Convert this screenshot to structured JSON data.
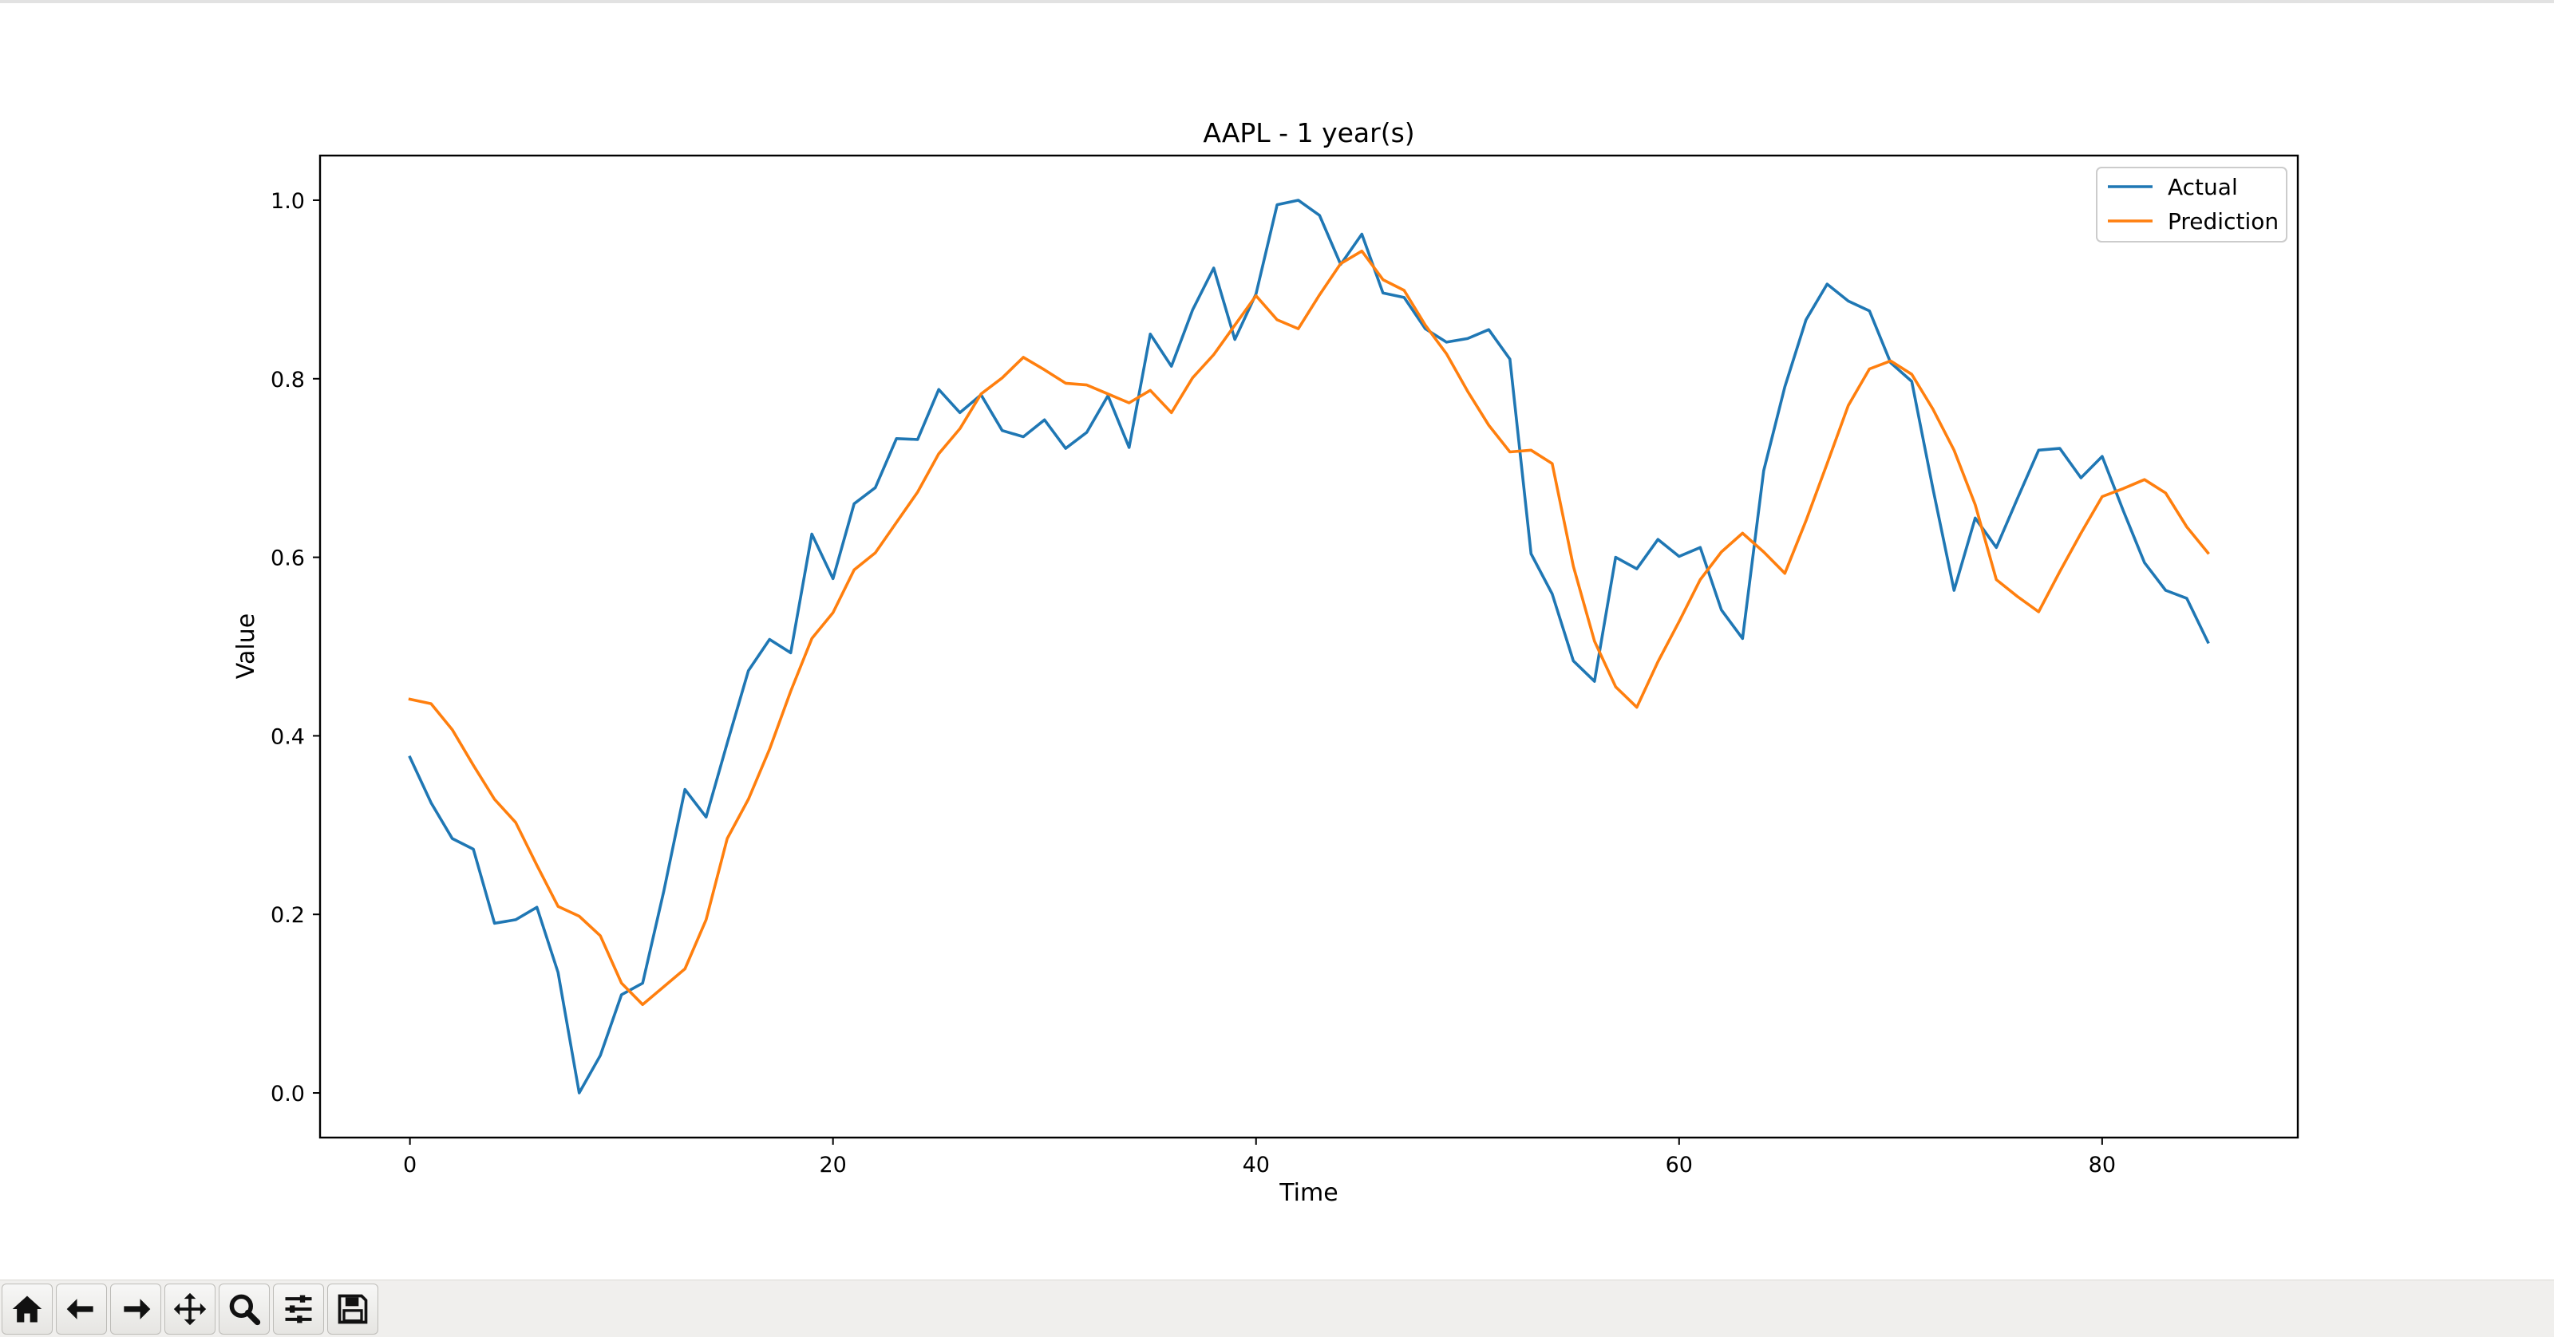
{
  "window": {
    "status_message": ""
  },
  "toolbar": {
    "buttons": [
      {
        "name": "home-button",
        "icon": "home-icon",
        "tooltip": "Home"
      },
      {
        "name": "back-button",
        "icon": "arrow-left-icon",
        "tooltip": "Back"
      },
      {
        "name": "forward-button",
        "icon": "arrow-right-icon",
        "tooltip": "Forward"
      },
      {
        "name": "pan-button",
        "icon": "move-icon",
        "tooltip": "Pan"
      },
      {
        "name": "zoom-button",
        "icon": "magnifier-icon",
        "tooltip": "Zoom"
      },
      {
        "name": "configure-subplots-button",
        "icon": "sliders-icon",
        "tooltip": "Subplots"
      },
      {
        "name": "save-button",
        "icon": "floppy-disk-icon",
        "tooltip": "Save"
      }
    ]
  },
  "chart_data": {
    "type": "line",
    "title": "AAPL - 1 year(s)",
    "xlabel": "Time",
    "ylabel": "Value",
    "xlim": [
      -4.25,
      89.25
    ],
    "ylim": [
      -0.05,
      1.05
    ],
    "xticks": [
      0,
      20,
      40,
      60,
      80
    ],
    "xtick_labels": [
      "0",
      "20",
      "40",
      "60",
      "80"
    ],
    "yticks": [
      0.0,
      0.2,
      0.4,
      0.6,
      0.8,
      1.0
    ],
    "ytick_labels": [
      "0.0",
      "0.2",
      "0.4",
      "0.6",
      "0.8",
      "1.0"
    ],
    "grid": false,
    "legend_position": "top-right",
    "x": [
      0,
      1,
      2,
      3,
      4,
      5,
      6,
      7,
      8,
      9,
      10,
      11,
      12,
      13,
      14,
      15,
      16,
      17,
      18,
      19,
      20,
      21,
      22,
      23,
      24,
      25,
      26,
      27,
      28,
      29,
      30,
      31,
      32,
      33,
      34,
      35,
      36,
      37,
      38,
      39,
      40,
      41,
      42,
      43,
      44,
      45,
      46,
      47,
      48,
      49,
      50,
      51,
      52,
      53,
      54,
      55,
      56,
      57,
      58,
      59,
      60,
      61,
      62,
      63,
      64,
      65,
      66,
      67,
      68,
      69,
      70,
      71,
      72,
      73,
      74,
      75,
      76,
      77,
      78,
      79,
      80,
      81,
      82,
      83,
      84,
      85
    ],
    "series": [
      {
        "name": "Actual",
        "color": "#1f77b4",
        "values": [
          0.376,
          0.325,
          0.285,
          0.273,
          0.19,
          0.194,
          0.208,
          0.135,
          0.0,
          0.042,
          0.11,
          0.123,
          0.226,
          0.34,
          0.309,
          0.392,
          0.473,
          0.508,
          0.493,
          0.626,
          0.576,
          0.66,
          0.678,
          0.733,
          0.732,
          0.788,
          0.762,
          0.782,
          0.742,
          0.735,
          0.754,
          0.722,
          0.74,
          0.781,
          0.723,
          0.85,
          0.814,
          0.877,
          0.924,
          0.844,
          0.895,
          0.995,
          1.0,
          0.983,
          0.928,
          0.962,
          0.896,
          0.891,
          0.856,
          0.841,
          0.845,
          0.855,
          0.822,
          0.604,
          0.559,
          0.484,
          0.461,
          0.6,
          0.587,
          0.62,
          0.601,
          0.611,
          0.541,
          0.509,
          0.697,
          0.791,
          0.866,
          0.906,
          0.887,
          0.876,
          0.818,
          0.797,
          0.677,
          0.563,
          0.644,
          0.611,
          0.666,
          0.72,
          0.722,
          0.689,
          0.713,
          0.652,
          0.594,
          0.563,
          0.554,
          0.505
        ]
      },
      {
        "name": "Prediction",
        "color": "#ff7f0e",
        "values": [
          0.441,
          0.436,
          0.407,
          0.367,
          0.329,
          0.303,
          0.255,
          0.209,
          0.198,
          0.176,
          0.123,
          0.099,
          0.119,
          0.139,
          0.194,
          0.285,
          0.329,
          0.385,
          0.45,
          0.509,
          0.538,
          0.586,
          0.605,
          0.639,
          0.673,
          0.716,
          0.744,
          0.783,
          0.801,
          0.824,
          0.81,
          0.795,
          0.793,
          0.783,
          0.773,
          0.787,
          0.762,
          0.801,
          0.827,
          0.86,
          0.893,
          0.866,
          0.856,
          0.894,
          0.929,
          0.943,
          0.911,
          0.899,
          0.86,
          0.828,
          0.786,
          0.748,
          0.718,
          0.72,
          0.705,
          0.59,
          0.506,
          0.455,
          0.432,
          0.483,
          0.528,
          0.575,
          0.606,
          0.627,
          0.606,
          0.582,
          0.641,
          0.705,
          0.77,
          0.811,
          0.82,
          0.805,
          0.766,
          0.72,
          0.659,
          0.575,
          0.556,
          0.539,
          0.584,
          0.627,
          0.668,
          0.677,
          0.687,
          0.672,
          0.634,
          0.605
        ]
      }
    ]
  }
}
